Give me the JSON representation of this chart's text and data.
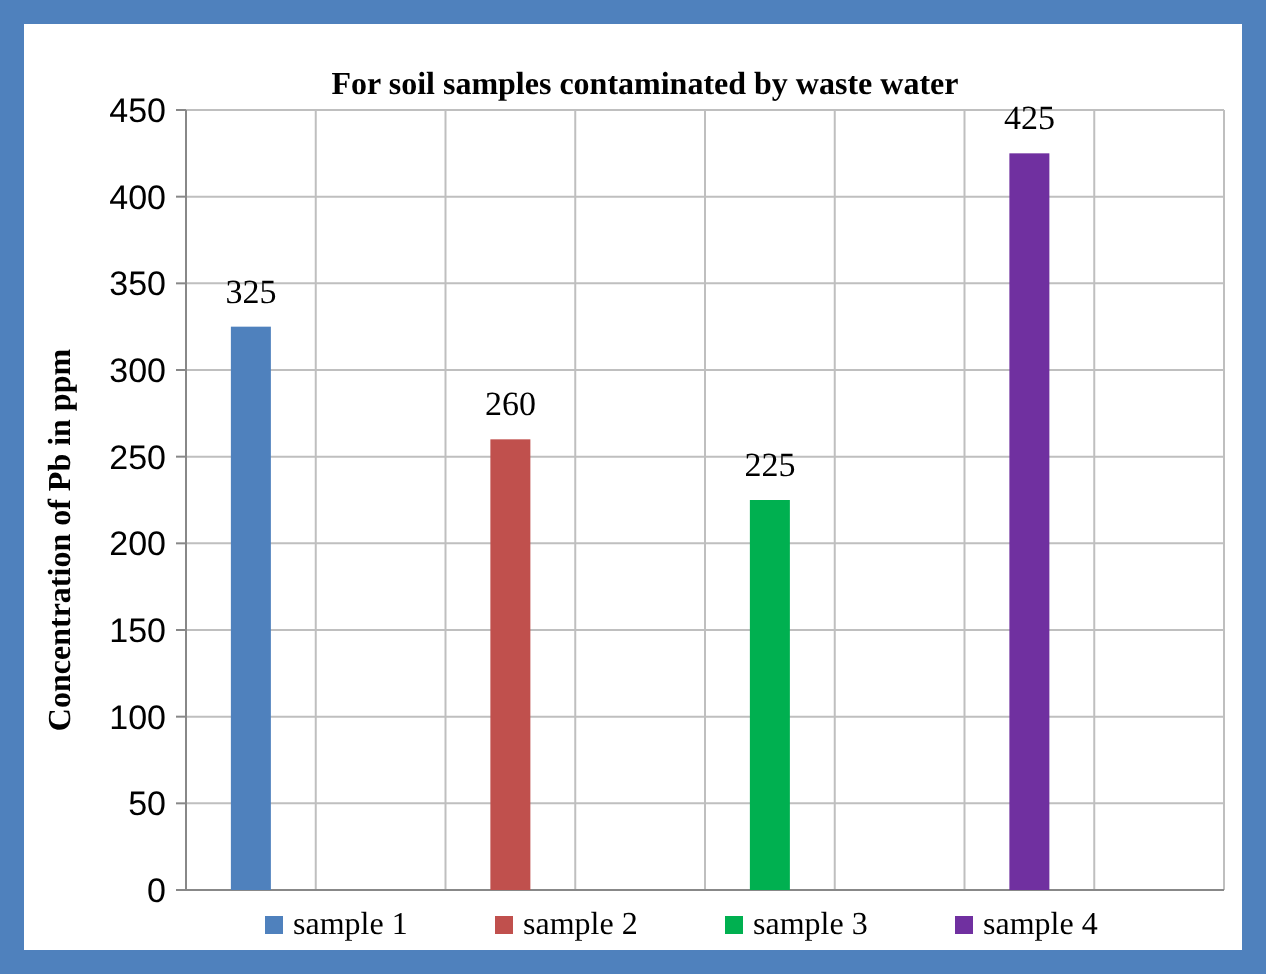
{
  "chart_data": {
    "type": "bar",
    "title": "For soil samples contaminated by waste water",
    "ylabel": "Concentration of Pb in ppm",
    "categories": [
      null,
      null,
      null,
      null
    ],
    "series": [
      {
        "name": "sample 1",
        "color": "#4f81bd",
        "values": [
          325,
          null,
          null,
          null
        ]
      },
      {
        "name": "sample 2",
        "color": "#c0504d",
        "values": [
          null,
          260,
          null,
          null
        ]
      },
      {
        "name": "sample 3",
        "color": "#00b050",
        "values": [
          null,
          null,
          225,
          null
        ]
      },
      {
        "name": "sample 4",
        "color": "#7030a0",
        "values": [
          null,
          null,
          null,
          425
        ]
      }
    ],
    "ylim": [
      0,
      450
    ],
    "yticks": [
      0,
      50,
      100,
      150,
      200,
      250,
      300,
      350,
      400,
      450
    ],
    "grid": true,
    "data_labels": true,
    "legend": "bottom"
  }
}
